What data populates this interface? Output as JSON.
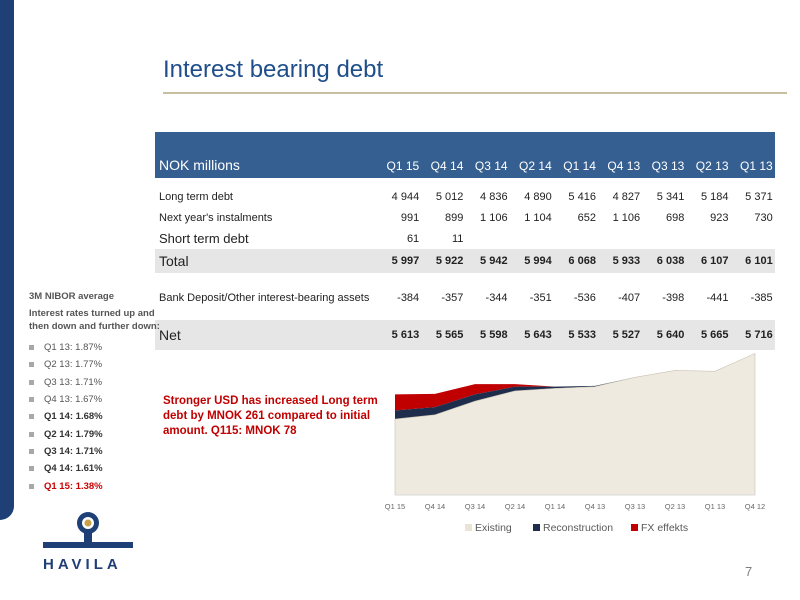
{
  "title": "Interest bearing debt",
  "page_number": "7",
  "logo_text": "HAVILA",
  "table": {
    "header_label": "NOK millions",
    "columns": [
      "Q1 15",
      "Q4 14",
      "Q3 14",
      "Q2 14",
      "Q1 14",
      "Q4 13",
      "Q3 13",
      "Q2 13",
      "Q1 13"
    ],
    "rows": [
      {
        "label": "Long term debt",
        "values": [
          "4 944",
          "5 012",
          "4 836",
          "4 890",
          "5 416",
          "4 827",
          "5 341",
          "5 184",
          "5 371"
        ]
      },
      {
        "label": "Next year's instalments",
        "values": [
          "991",
          "899",
          "1 106",
          "1 104",
          "652",
          "1 106",
          "698",
          "923",
          "730"
        ]
      },
      {
        "label": "Short term debt",
        "values": [
          "61",
          "11",
          "",
          "",
          "",
          "",
          "",
          "",
          ""
        ]
      }
    ],
    "total": {
      "label": "Total",
      "values": [
        "5 997",
        "5 922",
        "5 942",
        "5 994",
        "6 068",
        "5 933",
        "6 038",
        "6 107",
        "6 101"
      ]
    },
    "bank": {
      "label": "Bank Deposit/Other interest-bearing assets",
      "values": [
        "-384",
        "-357",
        "-344",
        "-351",
        "-536",
        "-407",
        "-398",
        "-441",
        "-385"
      ]
    },
    "net": {
      "label": "Net",
      "values": [
        "5 613",
        "5 565",
        "5 598",
        "5 643",
        "5 533",
        "5 527",
        "5 640",
        "5 665",
        "5 716"
      ]
    }
  },
  "sidebar": {
    "heading": "3M NIBOR average",
    "desc": "Interest rates turned up and then down and further down:",
    "items": [
      {
        "text": "Q1 13: 1.87%",
        "style": "normal"
      },
      {
        "text": "Q2 13: 1.77%",
        "style": "normal"
      },
      {
        "text": "Q3 13: 1.71%",
        "style": "normal"
      },
      {
        "text": "Q4 13: 1.67%",
        "style": "normal"
      },
      {
        "text": "Q1 14: 1.68%",
        "style": "bold"
      },
      {
        "text": "Q2 14: 1.79%",
        "style": "bold"
      },
      {
        "text": "Q3 14: 1.71%",
        "style": "bold"
      },
      {
        "text": "Q4 14: 1.61%",
        "style": "bold"
      },
      {
        "text": "Q1 15: 1.38%",
        "style": "red"
      }
    ]
  },
  "annotation": "Stronger USD has increased Long term debt by MNOK 261 compared to initial amount. Q115: MNOK 78",
  "chart_data": {
    "type": "area",
    "categories": [
      "Q1 15",
      "Q4 14",
      "Q3 14",
      "Q2 14",
      "Q1 14",
      "Q4 13",
      "Q3 13",
      "Q2 13",
      "Q1 13",
      "Q4 12"
    ],
    "series": [
      {
        "name": "Existing",
        "values": [
          5395,
          5420,
          5500,
          5560,
          5575,
          5585,
          5640,
          5680,
          5675,
          5780
        ],
        "color": "#eeeae0"
      },
      {
        "name": "Reconstruction",
        "values": [
          50,
          45,
          40,
          25,
          10,
          5,
          0,
          0,
          0,
          0
        ],
        "color": "#1f2d4d"
      },
      {
        "name": "FX effekts",
        "values": [
          95,
          78,
          60,
          15,
          0,
          0,
          0,
          0,
          0,
          0
        ],
        "color": "#c00000"
      }
    ],
    "ylim": [
      4950,
      5800
    ],
    "legend": "bottom",
    "grid": false
  }
}
